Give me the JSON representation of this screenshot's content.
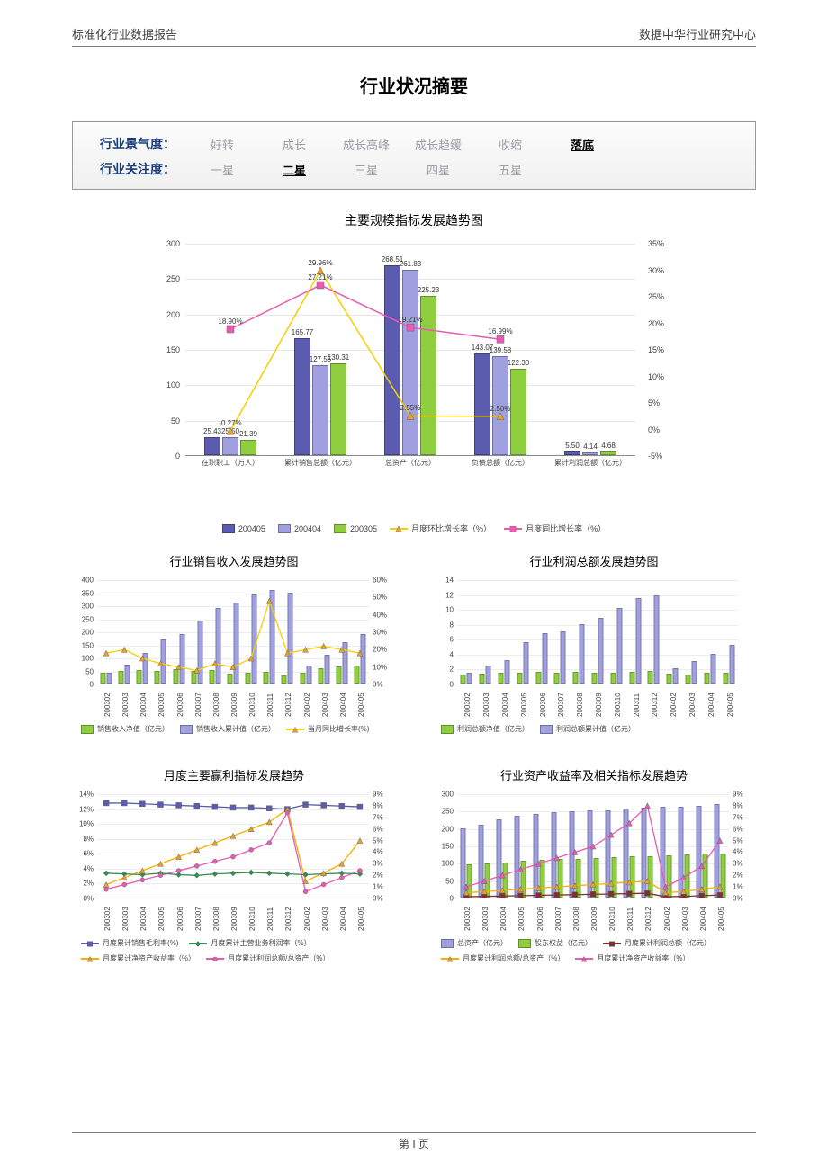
{
  "header": {
    "left": "标准化行业数据报告",
    "right": "数据中华行业研究中心"
  },
  "title": "行业状况摘要",
  "status": {
    "row1": {
      "label": "行业景气度：",
      "options": [
        "好转",
        "成长",
        "成长高峰",
        "成长趋缓",
        "收缩",
        "落底"
      ],
      "selected": 5
    },
    "row2": {
      "label": "行业关注度：",
      "options": [
        "一星",
        "二星",
        "三星",
        "四星",
        "五星"
      ],
      "selected": 1
    }
  },
  "chart1": {
    "title": "主要规模指标发展趋势图",
    "y_left": {
      "min": 0,
      "max": 300,
      "step": 50
    },
    "y_right": {
      "min": -5,
      "max": 35,
      "step": 5,
      "suffix": "%"
    },
    "categories": [
      "在职职工（万人）",
      "累计销售总额（亿元）",
      "总资产（亿元）",
      "负债总额（亿元）",
      "累计利润总额（亿元）"
    ],
    "bars": {
      "series": [
        {
          "name": "200405",
          "color": "#5b5bb0"
        },
        {
          "name": "200404",
          "color": "#a0a0e0"
        },
        {
          "name": "200305",
          "color": "#8fcf3f"
        }
      ],
      "values": [
        [
          25.43,
          25.5,
          21.39
        ],
        [
          165.77,
          127.55,
          130.31
        ],
        [
          268.51,
          261.83,
          225.23
        ],
        [
          143.07,
          139.58,
          122.3
        ],
        [
          5.5,
          4.14,
          4.68
        ]
      ]
    },
    "lines": {
      "series": [
        {
          "name": "月度环比增长率（%）",
          "color": "#f5d000",
          "marker": "triangle",
          "mcolor": "#e8a030"
        },
        {
          "name": "月度同比增长率（%）",
          "color": "#e85ab4",
          "marker": "square",
          "mcolor": "#e85ab4"
        }
      ],
      "values": [
        [
          -0.27,
          29.96,
          2.55,
          2.5,
          null
        ],
        [
          18.9,
          27.21,
          19.21,
          16.99,
          null
        ]
      ]
    }
  },
  "periods": [
    "200302",
    "200303",
    "200304",
    "200305",
    "200306",
    "200307",
    "200308",
    "200309",
    "200310",
    "200311",
    "200312",
    "200402",
    "200403",
    "200404",
    "200405"
  ],
  "chart2": {
    "title": "行业销售收入发展趋势图",
    "y_left": {
      "min": 0,
      "max": 400,
      "step": 50
    },
    "y_right": {
      "min": 0,
      "max": 60,
      "step": 10,
      "suffix": "%"
    },
    "bars": {
      "series": [
        {
          "name": "销售收入净值（亿元）",
          "color": "#8fcf3f"
        },
        {
          "name": "销售收入累计值（亿元）",
          "color": "#a0a0e0"
        }
      ],
      "values": [
        [
          40,
          40
        ],
        [
          48,
          72
        ],
        [
          52,
          118
        ],
        [
          50,
          170
        ],
        [
          55,
          190
        ],
        [
          48,
          240
        ],
        [
          52,
          290
        ],
        [
          38,
          310
        ],
        [
          42,
          340
        ],
        [
          45,
          360
        ],
        [
          32,
          350
        ],
        [
          40,
          70
        ],
        [
          60,
          110
        ],
        [
          65,
          160
        ],
        [
          68,
          190
        ]
      ]
    },
    "lines": {
      "series": [
        {
          "name": "当月同比增长率(%)",
          "color": "#f5d000",
          "marker": "triangle",
          "mcolor": "#e8a030"
        }
      ],
      "values": [
        [
          18,
          20,
          15,
          12,
          10,
          8,
          12,
          10,
          15,
          48,
          18,
          20,
          22,
          20,
          18
        ]
      ]
    }
  },
  "chart3": {
    "title": "行业利润总额发展趋势图",
    "y_left": {
      "min": 0,
      "max": 14,
      "step": 2
    },
    "bars": {
      "series": [
        {
          "name": "利润总额净值（亿元）",
          "color": "#8fcf3f"
        },
        {
          "name": "利润总额累计值（亿元）",
          "color": "#a0a0e0"
        }
      ],
      "values": [
        [
          1.2,
          1.5
        ],
        [
          1.3,
          2.4
        ],
        [
          1.4,
          3.2
        ],
        [
          1.5,
          5.5
        ],
        [
          1.6,
          6.8
        ],
        [
          1.5,
          7.0
        ],
        [
          1.6,
          8.0
        ],
        [
          1.4,
          8.8
        ],
        [
          1.5,
          10.2
        ],
        [
          1.6,
          11.5
        ],
        [
          1.7,
          11.8
        ],
        [
          1.3,
          2.0
        ],
        [
          1.2,
          3.0
        ],
        [
          1.4,
          4.0
        ],
        [
          1.5,
          5.2
        ]
      ]
    }
  },
  "chart4": {
    "title": "月度主要赢利指标发展趋势",
    "y_left": {
      "min": 0,
      "max": 14,
      "step": 2,
      "suffix": "%"
    },
    "y_right": {
      "min": 0,
      "max": 9,
      "step": 1,
      "suffix": "%"
    },
    "lines": {
      "series": [
        {
          "name": "月度累计销售毛利率(%)",
          "color": "#5b5bb0",
          "marker": "square",
          "mcolor": "#5b5bb0",
          "axis": "left"
        },
        {
          "name": "月度累计主营业务利润率（%）",
          "color": "#2f8f4f",
          "marker": "diamond",
          "mcolor": "#2f8f4f",
          "axis": "left"
        },
        {
          "name": "月度累计净资产收益率（%）",
          "color": "#f5b000",
          "marker": "triangle",
          "mcolor": "#e8a030",
          "axis": "right"
        },
        {
          "name": "月度累计利润总额/总资产（%）",
          "color": "#e85ab4",
          "marker": "circle",
          "mcolor": "#e85ab4",
          "axis": "right"
        }
      ],
      "values": [
        [
          12.8,
          12.8,
          12.7,
          12.6,
          12.5,
          12.4,
          12.3,
          12.2,
          12.2,
          12.1,
          12.0,
          12.6,
          12.5,
          12.4,
          12.3
        ],
        [
          3.4,
          3.3,
          3.2,
          3.4,
          3.2,
          3.1,
          3.3,
          3.4,
          3.5,
          3.4,
          3.3,
          3.2,
          3.3,
          3.4,
          3.3
        ],
        [
          1.2,
          1.8,
          2.4,
          3.0,
          3.6,
          4.2,
          4.8,
          5.4,
          6.0,
          6.6,
          7.7,
          1.5,
          2.2,
          3.0,
          5.0
        ],
        [
          0.8,
          1.2,
          1.6,
          2.0,
          2.4,
          2.8,
          3.2,
          3.6,
          4.2,
          4.8,
          7.4,
          0.6,
          1.2,
          1.8,
          2.4
        ]
      ]
    }
  },
  "chart5": {
    "title": "行业资产收益率及相关指标发展趋势",
    "y_left": {
      "min": 0,
      "max": 300,
      "step": 50
    },
    "y_right": {
      "min": 0,
      "max": 9,
      "step": 1,
      "suffix": "%"
    },
    "bars": {
      "series": [
        {
          "name": "总资产（亿元）",
          "color": "#a0a0e0"
        },
        {
          "name": "股东权益（亿元）",
          "color": "#8fcf3f"
        }
      ],
      "values": [
        [
          200,
          95
        ],
        [
          210,
          98
        ],
        [
          225,
          102
        ],
        [
          235,
          105
        ],
        [
          240,
          108
        ],
        [
          245,
          110
        ],
        [
          248,
          112
        ],
        [
          250,
          114
        ],
        [
          252,
          116
        ],
        [
          255,
          118
        ],
        [
          258,
          120
        ],
        [
          260,
          122
        ],
        [
          262,
          124
        ],
        [
          265,
          126
        ],
        [
          268,
          128
        ]
      ]
    },
    "lines": {
      "series": [
        {
          "name": "月度累计利润总额（亿元）",
          "color": "#803030",
          "marker": "square",
          "mcolor": "#803030",
          "axis": "left"
        },
        {
          "name": "月度累计利润总额/总资产（%）",
          "color": "#f5b000",
          "marker": "triangle",
          "mcolor": "#e8a030",
          "axis": "right"
        },
        {
          "name": "月度累计净资产收益率（%）",
          "color": "#e85ab4",
          "marker": "triangle",
          "mcolor": "#e85ab4",
          "axis": "right"
        }
      ],
      "values": [
        [
          5,
          6,
          7,
          8,
          9,
          10,
          11,
          12,
          13,
          14,
          15,
          5,
          6,
          8,
          10
        ],
        [
          0.5,
          0.6,
          0.7,
          0.8,
          0.9,
          1.0,
          1.1,
          1.2,
          1.3,
          1.4,
          1.5,
          0.5,
          0.6,
          0.8,
          1.0
        ],
        [
          1.0,
          1.5,
          2.0,
          2.5,
          3.0,
          3.5,
          4.0,
          4.5,
          5.5,
          6.5,
          8.0,
          1.0,
          1.8,
          2.8,
          5.0
        ]
      ]
    }
  },
  "footer": "第 I 页",
  "colors": {
    "grid": "#e6e6e6",
    "axis": "#888888"
  }
}
